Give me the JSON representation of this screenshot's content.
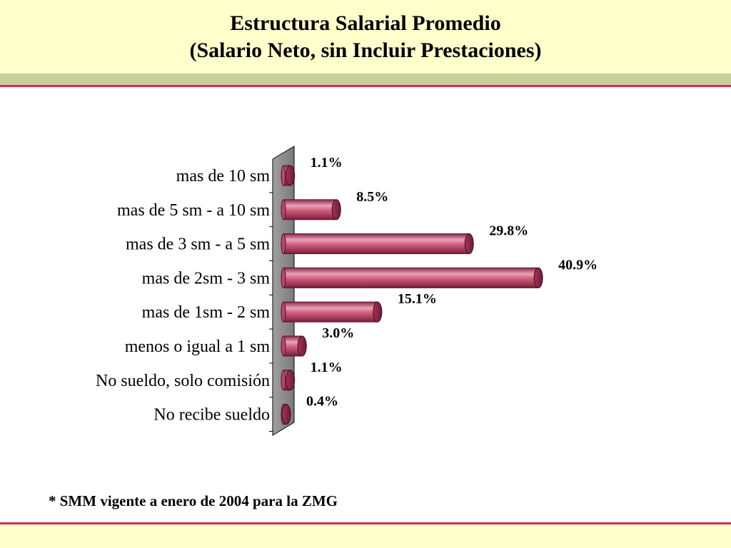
{
  "title": {
    "line1": "Estructura Salarial Promedio",
    "line2": "(Salario Neto, sin Incluir Prestaciones)"
  },
  "footnote": "* SMM vigente a enero de 2004 para la ZMG",
  "colors": {
    "bar": "#c84a6e",
    "bar_light": "#f2b9c9",
    "bar_dark": "#7a1e3a",
    "wall": "#8c8c8c",
    "header_band": "#ffffcc",
    "accent_rule": "#cc3355"
  },
  "chart_data": {
    "type": "bar",
    "orientation": "horizontal",
    "style": "3d-cylinder",
    "categories": [
      "mas de 10 sm",
      "mas de 5 sm - a 10 sm",
      "mas de 3 sm - a 5 sm",
      "mas de 2sm - 3 sm",
      "mas de 1sm - 2 sm",
      "menos o igual a 1 sm",
      "No sueldo, solo comisión",
      "No recibe sueldo"
    ],
    "values": [
      1.1,
      8.5,
      29.8,
      40.9,
      15.1,
      3.0,
      1.1,
      0.4
    ],
    "value_labels": [
      "1.1%",
      "8.5%",
      "29.8%",
      "40.9%",
      "15.1%",
      "3.0%",
      "1.1%",
      "0.4%"
    ],
    "xlim": [
      0,
      41
    ],
    "grid": false,
    "legend": "none"
  }
}
